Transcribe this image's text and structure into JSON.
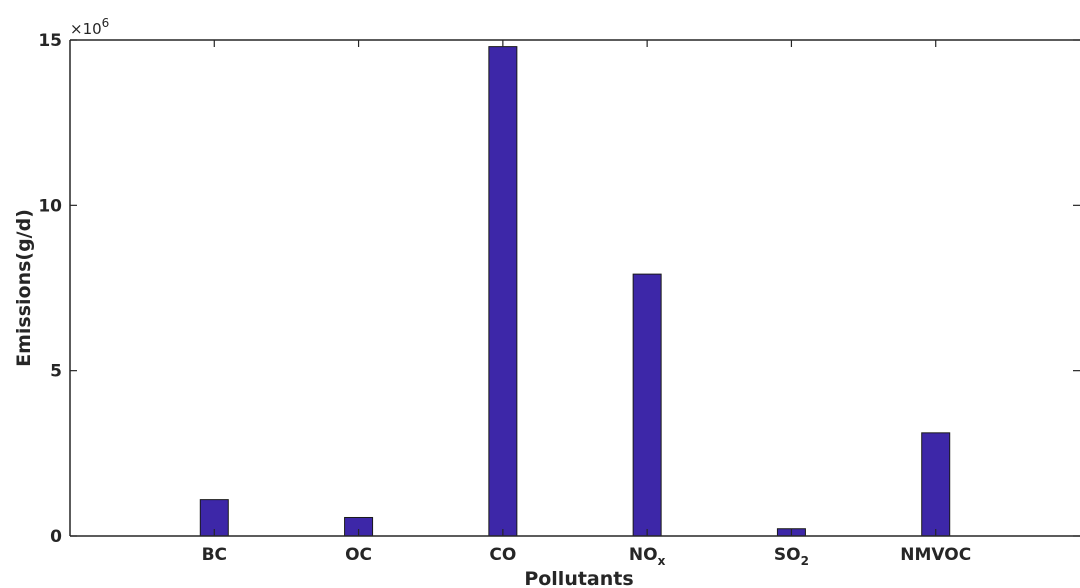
{
  "chart_data": {
    "type": "bar",
    "categories": [
      "BC",
      "OC",
      "CO",
      "NOx",
      "SO2",
      "NMVOC"
    ],
    "category_labels": [
      {
        "main": "BC",
        "sub": ""
      },
      {
        "main": "OC",
        "sub": ""
      },
      {
        "main": "CO",
        "sub": ""
      },
      {
        "main": "NO",
        "sub": "x"
      },
      {
        "main": "SO",
        "sub": "2"
      },
      {
        "main": "NMVOC",
        "sub": ""
      }
    ],
    "values": [
      1100000,
      560000,
      14800000,
      7920000,
      220000,
      3120000
    ],
    "xlabel": "Pollutants",
    "ylabel": "Emissions(g/d)",
    "ylim": [
      0,
      15000000
    ],
    "yticks": [
      0,
      5,
      10,
      15
    ],
    "y_exponent": "×10",
    "y_exponent_power": "6",
    "xlim": [
      0,
      7
    ],
    "bar_color": "#3d27a8",
    "grid": false,
    "legend": "none"
  }
}
